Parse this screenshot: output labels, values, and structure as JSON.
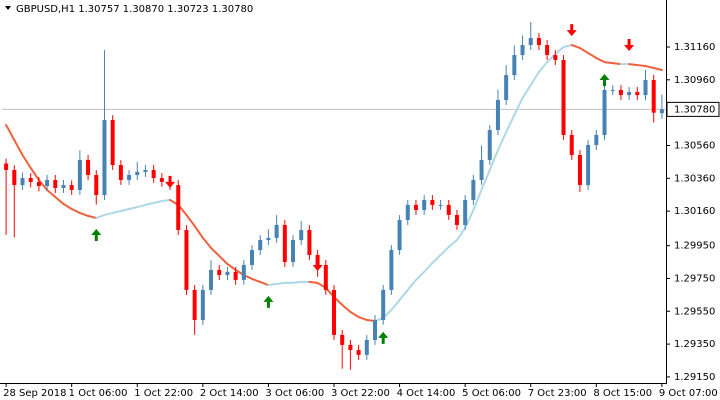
{
  "chart_data": {
    "type": "candlestick",
    "title": "GBPUSD,H1  1.30757 1.30870 1.30723 1.30780",
    "categories": [
      "28 Sep 2018",
      null,
      null,
      null,
      null,
      null,
      null,
      null,
      "1 Oct 06:00",
      null,
      null,
      null,
      null,
      null,
      null,
      null,
      "1 Oct 22:00",
      null,
      null,
      null,
      null,
      null,
      null,
      null,
      "2 Oct 14:00",
      null,
      null,
      null,
      null,
      null,
      null,
      null,
      "3 Oct 06:00",
      null,
      null,
      null,
      null,
      null,
      null,
      null,
      "3 Oct 22:00",
      null,
      null,
      null,
      null,
      null,
      null,
      null,
      "4 Oct 14:00",
      null,
      null,
      null,
      null,
      null,
      null,
      null,
      "5 Oct 06:00",
      null,
      null,
      null,
      null,
      null,
      null,
      null,
      "7 Oct 23:00",
      null,
      null,
      null,
      null,
      null,
      null,
      null,
      "8 Oct 15:00",
      null,
      null,
      null,
      null,
      null,
      null,
      null,
      "9 Oct 07:00"
    ],
    "open": [
      1.3045,
      1.30411,
      1.30319,
      1.30362,
      1.30338,
      1.30313,
      1.3035,
      1.30301,
      1.30319,
      1.30289,
      1.30472,
      1.3038,
      1.30258,
      1.30715,
      1.30441,
      1.3035,
      1.3038,
      1.30399,
      1.30411,
      1.30362,
      1.30338,
      1.30319,
      1.30045,
      1.2968,
      1.29497,
      1.2968,
      1.29802,
      1.29771,
      1.2979,
      1.29741,
      1.29832,
      1.29923,
      1.29984,
      1.29997,
      1.30076,
      1.2985,
      1.29984,
      1.30045,
      1.29893,
      1.29832,
      1.2968,
      1.29406,
      1.29345,
      1.29314,
      1.29284,
      1.29375,
      1.29497,
      1.2968,
      1.29923,
      1.30106,
      1.30198,
      1.30167,
      1.30228,
      1.30198,
      1.30198,
      1.30137,
      1.30076,
      1.30228,
      1.3035,
      1.30472,
      1.30654,
      1.30837,
      1.30989,
      1.31111,
      1.31172,
      1.31215,
      1.31172,
      1.31111,
      1.31081,
      1.30624,
      1.30502,
      1.30319,
      1.30563,
      1.30624,
      1.30898,
      1.30898,
      1.30867,
      1.30886,
      1.30867,
      1.30959,
      1.30757
    ],
    "high": [
      1.3048,
      1.3044,
      1.30395,
      1.30392,
      1.30368,
      1.3038,
      1.3038,
      1.3035,
      1.30348,
      1.3053,
      1.30502,
      1.3041,
      1.31141,
      1.30745,
      1.30471,
      1.3041,
      1.3046,
      1.30441,
      1.30441,
      1.30392,
      1.30368,
      1.30349,
      1.30075,
      1.2971,
      1.2971,
      1.2986,
      1.29832,
      1.2982,
      1.2982,
      1.29862,
      1.29953,
      1.30014,
      1.3005,
      1.30136,
      1.30106,
      1.30014,
      1.301,
      1.30075,
      1.29923,
      1.29862,
      1.2971,
      1.29436,
      1.29375,
      1.29344,
      1.29405,
      1.29527,
      1.2971,
      1.29953,
      1.30136,
      1.30228,
      1.30228,
      1.30258,
      1.30258,
      1.30228,
      1.30228,
      1.30167,
      1.30258,
      1.3038,
      1.3056,
      1.30684,
      1.309,
      1.3105,
      1.3117,
      1.3123,
      1.31312,
      1.31245,
      1.31202,
      1.31141,
      1.31111,
      1.30654,
      1.30532,
      1.30593,
      1.30654,
      1.3096,
      1.30928,
      1.30928,
      1.30916,
      1.30916,
      1.3102,
      1.3099,
      1.3087
    ],
    "low": [
      1.30015,
      1.3,
      1.3029,
      1.30305,
      1.3028,
      1.30283,
      1.3027,
      1.30271,
      1.30259,
      1.30259,
      1.3035,
      1.302,
      1.30228,
      1.30411,
      1.3032,
      1.3032,
      1.3035,
      1.30369,
      1.30332,
      1.30308,
      1.30289,
      1.30015,
      1.2965,
      1.29406,
      1.29467,
      1.2965,
      1.29741,
      1.29741,
      1.29711,
      1.29711,
      1.29802,
      1.29893,
      1.29954,
      1.29967,
      1.2982,
      1.2982,
      1.29954,
      1.29863,
      1.2976,
      1.2965,
      1.29376,
      1.292,
      1.29193,
      1.29254,
      1.29254,
      1.29345,
      1.29467,
      1.2965,
      1.29893,
      1.30076,
      1.30137,
      1.30137,
      1.30168,
      1.30168,
      1.30107,
      1.30046,
      1.30046,
      1.30198,
      1.3032,
      1.30442,
      1.30624,
      1.30807,
      1.30959,
      1.31081,
      1.31142,
      1.31142,
      1.31081,
      1.31051,
      1.30594,
      1.30472,
      1.30277,
      1.30289,
      1.30533,
      1.30594,
      1.30868,
      1.30837,
      1.30837,
      1.30837,
      1.30837,
      1.307,
      1.30723
    ],
    "close": [
      1.30411,
      1.30319,
      1.30362,
      1.30338,
      1.30313,
      1.3035,
      1.30301,
      1.30319,
      1.30289,
      1.30472,
      1.3038,
      1.30258,
      1.30715,
      1.30441,
      1.3035,
      1.3038,
      1.30399,
      1.30411,
      1.30362,
      1.30338,
      1.30319,
      1.30045,
      1.2968,
      1.29497,
      1.2968,
      1.29802,
      1.29771,
      1.2979,
      1.29741,
      1.29832,
      1.29923,
      1.29984,
      1.29997,
      1.30076,
      1.2985,
      1.29984,
      1.30045,
      1.29893,
      1.29832,
      1.2968,
      1.29406,
      1.29345,
      1.29314,
      1.29284,
      1.29375,
      1.29497,
      1.2968,
      1.29923,
      1.30106,
      1.30198,
      1.30167,
      1.30228,
      1.30198,
      1.30198,
      1.30137,
      1.30076,
      1.30228,
      1.3035,
      1.30472,
      1.30654,
      1.30837,
      1.30989,
      1.31111,
      1.31172,
      1.31215,
      1.31172,
      1.31111,
      1.31081,
      1.30624,
      1.30502,
      1.30319,
      1.30563,
      1.30624,
      1.30898,
      1.30898,
      1.30867,
      1.30886,
      1.30867,
      1.30959,
      1.3076,
      1.3078
    ],
    "bull_color": "#4682b4",
    "bear_color": "#ff0000",
    "ma": {
      "values": [
        1.30685,
        1.30593,
        1.30502,
        1.30423,
        1.3035,
        1.30289,
        1.30246,
        1.30204,
        1.30173,
        1.30149,
        1.30131,
        1.30118,
        1.30137,
        1.30149,
        1.30161,
        1.30173,
        1.30185,
        1.30198,
        1.3021,
        1.30222,
        1.30228,
        1.30198,
        1.30137,
        1.3007,
        1.29997,
        1.29936,
        1.29887,
        1.29838,
        1.29802,
        1.29771,
        1.29747,
        1.29729,
        1.2971,
        1.29716,
        1.29723,
        1.29723,
        1.29729,
        1.29729,
        1.29723,
        1.29692,
        1.29637,
        1.29589,
        1.29546,
        1.29515,
        1.29497,
        1.29491,
        1.29509,
        1.29558,
        1.29619,
        1.2968,
        1.29741,
        1.2979,
        1.29844,
        1.29893,
        1.29942,
        1.29984,
        1.30057,
        1.30167,
        1.30289,
        1.30411,
        1.30532,
        1.30642,
        1.30746,
        1.30849,
        1.30928,
        1.31008,
        1.31068,
        1.31117,
        1.3116,
        1.31172,
        1.31154,
        1.31123,
        1.31093,
        1.31068,
        1.31062,
        1.31056,
        1.31056,
        1.3105,
        1.31044,
        1.31032,
        1.3102
      ],
      "up_color": "#add8e6",
      "down_color": "#f0603c"
    },
    "arrows_up": {
      "color": "#008000",
      "points": [
        {
          "x": 11,
          "value": 1.30015
        },
        {
          "x": 32,
          "value": 1.29607
        },
        {
          "x": 46,
          "value": 1.29388
        },
        {
          "x": 73,
          "value": 1.30959
        }
      ]
    },
    "arrows_down": {
      "color": "#ff0000",
      "points": [
        {
          "x": 20,
          "value": 1.30338
        },
        {
          "x": 38,
          "value": 1.29832
        },
        {
          "x": 69,
          "value": 1.31263
        },
        {
          "x": 76,
          "value": 1.31172
        }
      ]
    },
    "last_price": {
      "value": 1.3078,
      "label": "1.30780"
    },
    "ylim": [
      1.29113,
      1.31422
    ],
    "yticks": [
      {
        "value": 1.2915,
        "label": "1.29150"
      },
      {
        "value": 1.2935,
        "label": "1.29350"
      },
      {
        "value": 1.2955,
        "label": "1.29550"
      },
      {
        "value": 1.2975,
        "label": "1.29750"
      },
      {
        "value": 1.2995,
        "label": "1.29950"
      },
      {
        "value": 1.3016,
        "label": "1.30160"
      },
      {
        "value": 1.3036,
        "label": "1.30360"
      },
      {
        "value": 1.3056,
        "label": "1.30560"
      },
      {
        "value": 1.3096,
        "label": "1.30960"
      },
      {
        "value": 1.3116,
        "label": "1.31160"
      }
    ],
    "grid": false
  }
}
